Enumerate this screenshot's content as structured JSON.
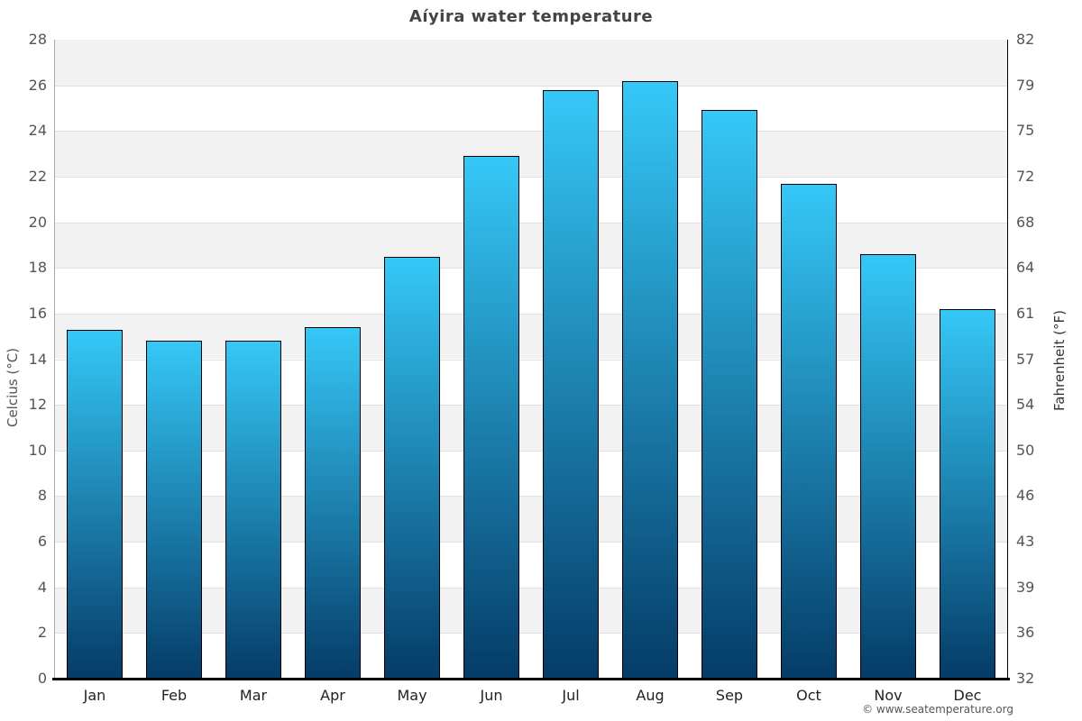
{
  "chart_data": {
    "type": "bar",
    "title": "Aíyira water temperature",
    "categories": [
      "Jan",
      "Feb",
      "Mar",
      "Apr",
      "May",
      "Jun",
      "Jul",
      "Aug",
      "Sep",
      "Oct",
      "Nov",
      "Dec"
    ],
    "values": [
      15.3,
      14.8,
      14.8,
      15.4,
      18.5,
      22.9,
      25.8,
      26.2,
      24.9,
      21.7,
      18.6,
      16.2
    ],
    "unit": "°C",
    "ylabel_left": "Celcius (°C)",
    "ylabel_right": "Fahrenheit (°F)",
    "ylim": [
      0,
      28
    ],
    "yticks_left": [
      0,
      2,
      4,
      6,
      8,
      10,
      12,
      14,
      16,
      18,
      20,
      22,
      24,
      26,
      28
    ],
    "yticks_right": [
      32,
      36,
      39,
      43,
      46,
      50,
      54,
      57,
      61,
      64,
      68,
      72,
      75,
      79,
      82
    ],
    "grid": "alternating-horizontal-bands",
    "legend": "none",
    "colors": {
      "bar_gradient_top": "#35c8f7",
      "bar_gradient_bottom": "#053c68",
      "bar_border": "#000000",
      "band_gray": "#f2f2f2",
      "band_white": "#ffffff",
      "gridline": "#e0e0e0",
      "left_axis_line": "#aaaaaa",
      "right_axis_line": "#000000",
      "baseline": "#000000",
      "title_text": "#444444",
      "tick_text": "#555555",
      "month_text": "#222222"
    }
  },
  "footer": {
    "copyright": "© www.seatemperature.org"
  }
}
